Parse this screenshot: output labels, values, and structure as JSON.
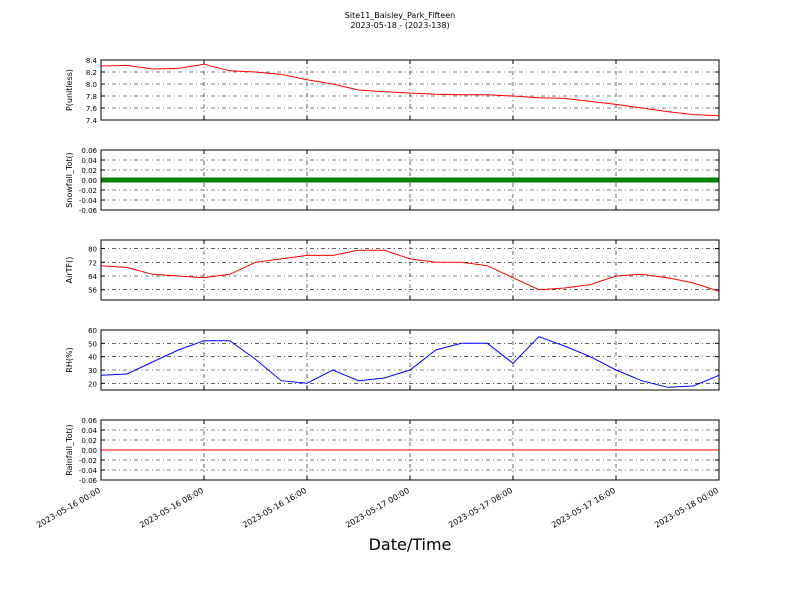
{
  "title": "Site11_Baisley_Park_Fifteen",
  "subtitle": "2023-05-18 - (2023-138)",
  "xlabel": "Date/Time",
  "xlim": [
    "2023-05-16 00:00",
    "2023-05-18 00:00"
  ],
  "xticks": [
    "2023-05-16 00:00",
    "2023-05-16 08:00",
    "2023-05-16 16:00",
    "2023-05-17 00:00",
    "2023-05-17 08:00",
    "2023-05-17 16:00",
    "2023-05-18 00:00"
  ],
  "x": [
    "2023-05-16 00:00",
    "2023-05-16 02:00",
    "2023-05-16 04:00",
    "2023-05-16 06:00",
    "2023-05-16 08:00",
    "2023-05-16 10:00",
    "2023-05-16 12:00",
    "2023-05-16 14:00",
    "2023-05-16 16:00",
    "2023-05-16 18:00",
    "2023-05-16 20:00",
    "2023-05-16 22:00",
    "2023-05-17 00:00",
    "2023-05-17 02:00",
    "2023-05-17 04:00",
    "2023-05-17 06:00",
    "2023-05-17 08:00",
    "2023-05-17 10:00",
    "2023-05-17 12:00",
    "2023-05-17 14:00",
    "2023-05-17 16:00",
    "2023-05-17 18:00",
    "2023-05-17 20:00",
    "2023-05-17 22:00",
    "2023-05-18 00:00"
  ],
  "chart_data": [
    {
      "type": "line",
      "ylabel": "P(unitless)",
      "ylim": [
        7.4,
        8.4
      ],
      "yticks": [
        7.4,
        7.6,
        7.8,
        {
          "value": 8,
          "label": "8.0"
        },
        8.2,
        8.4
      ],
      "grid": true,
      "series": [
        {
          "color": "#ff0000",
          "width": 1,
          "values": [
            8.3,
            8.31,
            8.25,
            8.26,
            8.33,
            8.22,
            8.2,
            8.16,
            8.07,
            8.0,
            7.9,
            7.87,
            7.85,
            7.83,
            7.82,
            7.82,
            7.8,
            7.77,
            7.76,
            7.71,
            7.66,
            7.6,
            7.54,
            7.49,
            7.47
          ]
        }
      ]
    },
    {
      "type": "line",
      "ylabel": "Snowfall_Tot()",
      "ylim": [
        -0.06,
        0.06
      ],
      "yticks": [
        -0.06,
        -0.04,
        -0.02,
        {
          "value": 0,
          "label": "0.00"
        },
        0.02,
        0.04,
        0.06
      ],
      "grid": true,
      "series": [
        {
          "color": "#008000",
          "width": 5,
          "values": [
            0,
            0,
            0,
            0,
            0,
            0,
            0,
            0,
            0,
            0,
            0,
            0,
            0,
            0,
            0,
            0,
            0,
            0,
            0,
            0,
            0,
            0,
            0,
            0,
            0
          ]
        }
      ]
    },
    {
      "type": "line",
      "ylabel": "AirTF()",
      "ylim": [
        50,
        85
      ],
      "yticks": [
        56,
        64,
        72,
        80
      ],
      "grid": true,
      "series": [
        {
          "color": "#ff0000",
          "width": 1,
          "values": [
            70,
            69,
            65,
            64,
            63,
            65,
            72,
            74,
            76,
            76,
            79,
            79,
            74,
            72,
            72,
            70,
            63,
            56,
            57,
            59,
            64,
            65,
            63,
            60,
            55
          ]
        }
      ]
    },
    {
      "type": "line",
      "ylabel": "RH(%)",
      "ylim": [
        15,
        60
      ],
      "yticks": [
        20,
        30,
        40,
        50,
        60
      ],
      "grid": true,
      "series": [
        {
          "color": "#0000ff",
          "width": 1,
          "values": [
            26,
            27,
            36,
            45,
            52,
            52,
            38,
            22,
            20,
            30,
            22,
            24,
            30,
            45,
            50,
            50,
            35,
            55,
            48,
            40,
            30,
            22,
            17,
            18,
            26
          ]
        }
      ]
    },
    {
      "type": "line",
      "ylabel": "Rainfall_Tot()",
      "ylim": [
        -0.06,
        0.06
      ],
      "yticks": [
        -0.06,
        -0.04,
        -0.02,
        {
          "value": 0,
          "label": "0.00"
        },
        0.02,
        0.04,
        0.06
      ],
      "grid": true,
      "series": [
        {
          "color": "#ff0000",
          "width": 1,
          "values": [
            0,
            0,
            0,
            0,
            0,
            0,
            0,
            0,
            0,
            0,
            0,
            0,
            0,
            0,
            0,
            0,
            0,
            0,
            0,
            0,
            0,
            0,
            0,
            0,
            0
          ]
        }
      ]
    }
  ]
}
